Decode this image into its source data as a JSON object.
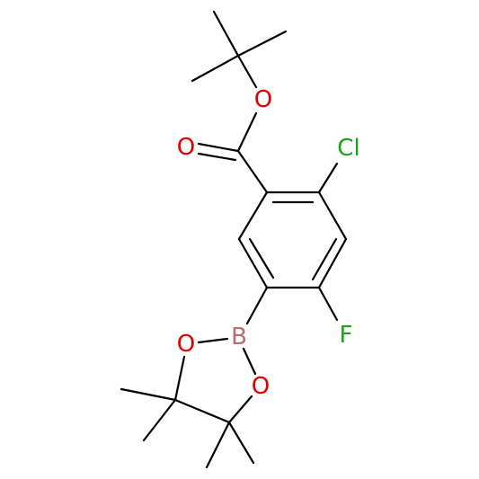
{
  "atoms": [
    "O",
    "O",
    "Cl",
    "F",
    "B",
    "O",
    "O"
  ]
}
